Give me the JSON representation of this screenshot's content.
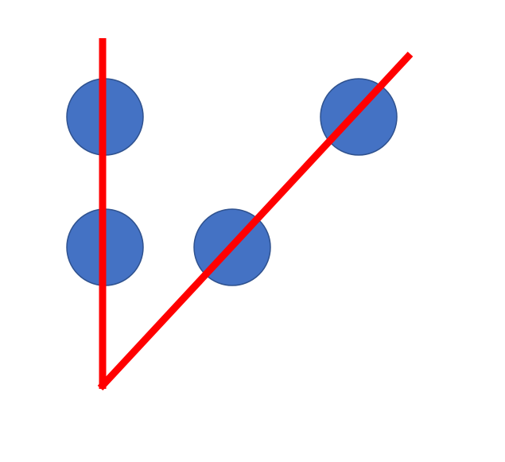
{
  "colors": {
    "background": "#ffffff",
    "circle_fill": "#4472c4",
    "circle_stroke": "#2f528f",
    "line": "#ff0000"
  },
  "shapes": {
    "circles": [
      {
        "name": "circle-top-left"
      },
      {
        "name": "circle-middle-left"
      },
      {
        "name": "circle-middle-center"
      },
      {
        "name": "circle-top-right"
      }
    ],
    "lines": [
      {
        "name": "vertical-red-line"
      },
      {
        "name": "diagonal-red-line"
      }
    ]
  }
}
